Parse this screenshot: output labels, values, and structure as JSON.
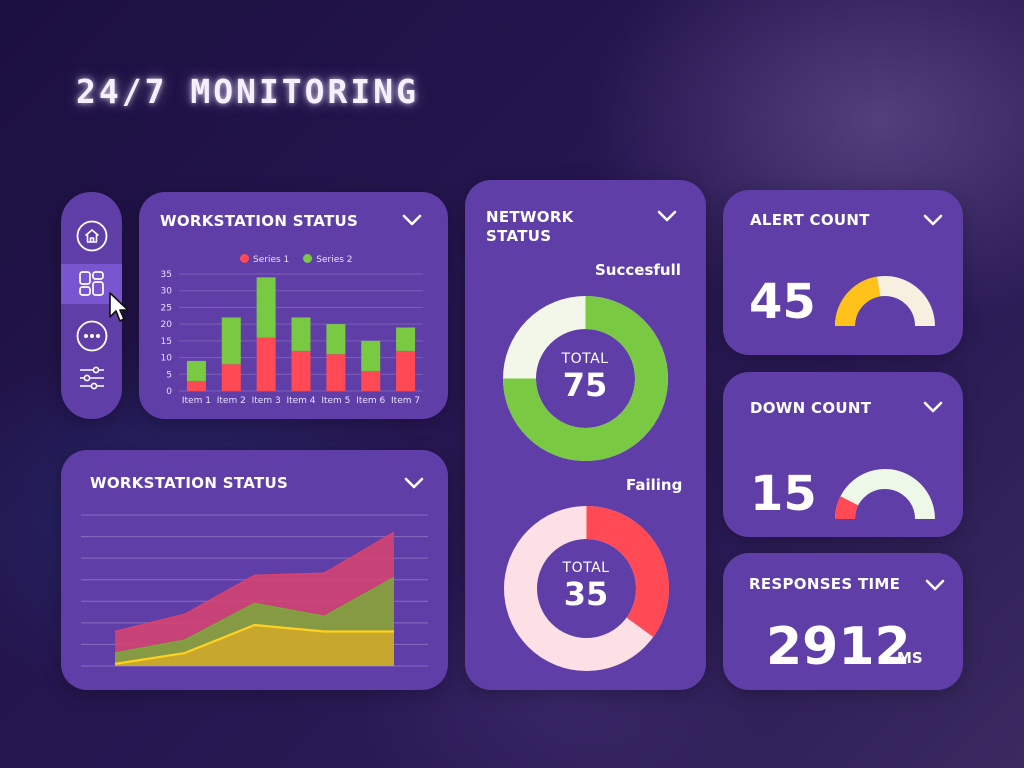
{
  "header": {
    "title": "24/7 MONITORING"
  },
  "sidebar": {
    "items": [
      {
        "icon": "home-icon"
      },
      {
        "icon": "dashboard-icon"
      },
      {
        "icon": "more-icon"
      },
      {
        "icon": "sliders-icon"
      }
    ],
    "active_index": 1
  },
  "colors": {
    "series1": "#ff4a55",
    "series2": "#7ac943",
    "gauge_yellow": "#ffc21a",
    "gauge_track": "#f7efe0",
    "card": "#5f3ea8"
  },
  "workstation_bar": {
    "title": "WORKSTATION STATUS",
    "legend": [
      "Series 1",
      "Series 2"
    ]
  },
  "workstation_area": {
    "title": "WORKSTATION STATUS"
  },
  "network": {
    "title_line1": "NETWORK",
    "title_line2": "STATUS",
    "success": {
      "label": "Succesfull",
      "total_label": "TOTAL",
      "total": "75",
      "fraction": 0.75
    },
    "failing": {
      "label": "Failing",
      "total_label": "TOTAL",
      "total": "35",
      "fraction": 0.35
    }
  },
  "alert": {
    "title": "ALERT COUNT",
    "value": "45",
    "gauge_fraction": 0.45
  },
  "down": {
    "title": "DOWN COUNT",
    "value": "15",
    "gauge_fraction": 0.15
  },
  "response": {
    "title": "RESPONSES TIME",
    "value": "2912",
    "unit": "MS"
  },
  "chart_data": [
    {
      "type": "bar",
      "title": "WORKSTATION STATUS",
      "stacked": true,
      "categories": [
        "Item 1",
        "Item 2",
        "Item 3",
        "Item 4",
        "Item 5",
        "Item 6",
        "Item 7"
      ],
      "series": [
        {
          "name": "Series 1",
          "values": [
            3,
            8,
            16,
            12,
            11,
            6,
            12
          ]
        },
        {
          "name": "Series 2",
          "values": [
            6,
            14,
            18,
            10,
            9,
            9,
            7
          ]
        }
      ],
      "yticks": [
        "0",
        "5",
        "10",
        "15",
        "20",
        "25",
        "30",
        "35"
      ],
      "ylim": [
        0,
        35
      ],
      "legend": "top"
    },
    {
      "type": "area",
      "title": "WORKSTATION STATUS",
      "x": [
        0,
        1,
        2,
        3,
        4
      ],
      "ylim": [
        0,
        7
      ],
      "series": [
        {
          "values": [
            1.6,
            2.4,
            4.2,
            4.3,
            6.2
          ],
          "color": "#d9436f"
        },
        {
          "values": [
            0.6,
            1.2,
            2.9,
            2.3,
            4.1
          ],
          "color": "#7aa83a"
        },
        {
          "values": [
            0.1,
            0.6,
            1.9,
            1.6,
            1.6
          ],
          "color": "#d4a92b"
        }
      ],
      "grid": true
    }
  ]
}
